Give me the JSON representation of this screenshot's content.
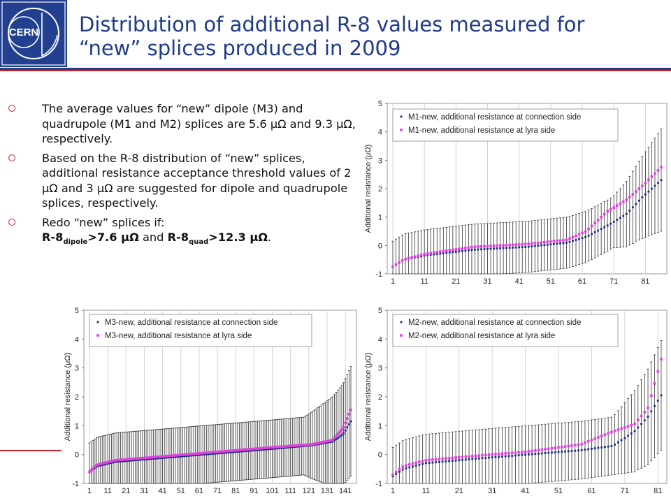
{
  "header": {
    "logo_text": "CERN",
    "title_line1": "Distribution of additional R-8 values measured for",
    "title_line2": "“new” splices produced in 2009"
  },
  "bullets": {
    "b1": "The average values for “new” dipole (M3) and quadrupole (M1 and M2) splices are 5.6 μΩ and 9.3 μΩ, respectively.",
    "b2": "Based on the R-8 distribution of “new” splices, additional resistance acceptance threshold values of 2 μΩ and 3 μΩ are suggested for dipole and quadrupole splices, respectively.",
    "b3_intro": "Redo “new” splices if:",
    "b3_r8a": "R-8",
    "b3_sub_a": "dipole",
    "b3_cond_a": ">7.6 μΩ",
    "b3_and": " and ",
    "b3_r8b": "R-8",
    "b3_sub_b": "quad",
    "b3_cond_b": ">12.3 μΩ",
    "b3_end": "."
  },
  "chart_data": [
    {
      "id": "M1",
      "type": "scatter",
      "ylabel": "Additional resistance (μΩ)",
      "ylim": [
        -1,
        5
      ],
      "yticks": [
        -1,
        0,
        1,
        2,
        3,
        4,
        5
      ],
      "xticks": [
        1,
        11,
        21,
        31,
        41,
        51,
        61,
        71,
        81
      ],
      "n_points": 86,
      "grid": "vertical lines every 10 samples",
      "error_bar_halfwidth": 0.9,
      "series": [
        {
          "name": "M1-new, additional resistance at connection side",
          "color": "#1a2a7a",
          "profile": [
            [
              0,
              -0.75
            ],
            [
              0.04,
              -0.5
            ],
            [
              0.12,
              -0.35
            ],
            [
              0.3,
              -0.15
            ],
            [
              0.5,
              -0.05
            ],
            [
              0.65,
              0.1
            ],
            [
              0.72,
              0.3
            ],
            [
              0.8,
              0.7
            ],
            [
              0.87,
              1.1
            ],
            [
              0.93,
              1.7
            ],
            [
              1,
              2.3
            ]
          ]
        },
        {
          "name": "M1-new, additional resistance at lyra side",
          "color": "#e040e0",
          "profile": [
            [
              0,
              -0.75
            ],
            [
              0.04,
              -0.5
            ],
            [
              0.12,
              -0.3
            ],
            [
              0.3,
              -0.05
            ],
            [
              0.5,
              0.05
            ],
            [
              0.65,
              0.2
            ],
            [
              0.72,
              0.5
            ],
            [
              0.8,
              1.2
            ],
            [
              0.87,
              1.6
            ],
            [
              0.93,
              2.1
            ],
            [
              1,
              2.75
            ]
          ]
        }
      ]
    },
    {
      "id": "M3",
      "type": "scatter",
      "ylabel": "Additional resistance (μΩ)",
      "ylim": [
        -1,
        5
      ],
      "yticks": [
        -1,
        0,
        1,
        2,
        3,
        4,
        5
      ],
      "xticks": [
        1,
        11,
        21,
        31,
        41,
        51,
        61,
        71,
        81,
        91,
        101,
        111,
        121,
        131,
        141
      ],
      "n_points": 144,
      "grid": "vertical lines every 10 samples",
      "error_bar_halfwidth": 1.0,
      "series": [
        {
          "name": "M3-new, additional resistance at connection side",
          "color": "#1a2a7a",
          "profile": [
            [
              0,
              -0.6
            ],
            [
              0.03,
              -0.4
            ],
            [
              0.1,
              -0.25
            ],
            [
              0.3,
              -0.1
            ],
            [
              0.5,
              0.05
            ],
            [
              0.7,
              0.2
            ],
            [
              0.85,
              0.32
            ],
            [
              0.93,
              0.45
            ],
            [
              0.97,
              0.7
            ],
            [
              1,
              1.15
            ]
          ]
        },
        {
          "name": "M3-new, additional resistance at lyra side",
          "color": "#e040e0",
          "profile": [
            [
              0,
              -0.6
            ],
            [
              0.03,
              -0.35
            ],
            [
              0.1,
              -0.2
            ],
            [
              0.3,
              -0.05
            ],
            [
              0.5,
              0.1
            ],
            [
              0.7,
              0.25
            ],
            [
              0.85,
              0.35
            ],
            [
              0.93,
              0.5
            ],
            [
              0.97,
              0.9
            ],
            [
              1,
              1.55
            ]
          ]
        }
      ]
    },
    {
      "id": "M2",
      "type": "scatter",
      "ylabel": "Additional resistance (μΩ)",
      "ylim": [
        -1,
        5
      ],
      "yticks": [
        -1,
        0,
        1,
        2,
        3,
        4,
        5
      ],
      "xticks": [
        1,
        11,
        21,
        31,
        41,
        51,
        61,
        71,
        81
      ],
      "n_points": 82,
      "grid": "vertical lines every 10 samples",
      "error_bar_halfwidth": 1.0,
      "series": [
        {
          "name": "M2-new, additional resistance at connection side",
          "color": "#1a2a7a",
          "profile": [
            [
              0,
              -0.75
            ],
            [
              0.04,
              -0.5
            ],
            [
              0.12,
              -0.3
            ],
            [
              0.3,
              -0.15
            ],
            [
              0.5,
              0.0
            ],
            [
              0.7,
              0.15
            ],
            [
              0.82,
              0.3
            ],
            [
              0.9,
              0.8
            ],
            [
              0.95,
              1.3
            ],
            [
              1,
              2.05
            ]
          ]
        },
        {
          "name": "M2-new, additional resistance at lyra side",
          "color": "#e040e0",
          "profile": [
            [
              0,
              -0.7
            ],
            [
              0.04,
              -0.4
            ],
            [
              0.12,
              -0.2
            ],
            [
              0.3,
              -0.05
            ],
            [
              0.5,
              0.1
            ],
            [
              0.7,
              0.35
            ],
            [
              0.82,
              0.8
            ],
            [
              0.9,
              1.05
            ],
            [
              0.95,
              1.6
            ],
            [
              1,
              3.3
            ]
          ]
        }
      ]
    }
  ]
}
